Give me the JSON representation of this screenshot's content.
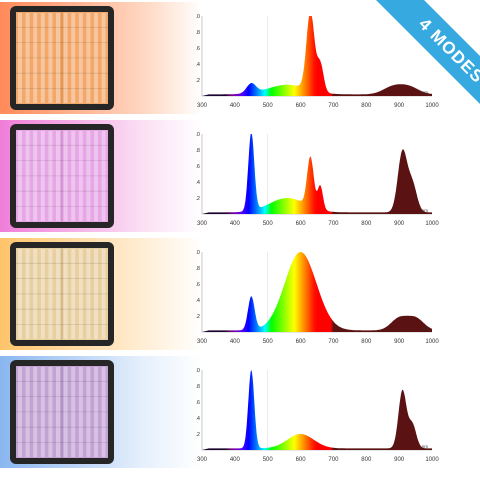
{
  "badge": {
    "text": "4 MODES",
    "color": "#36a9e1"
  },
  "modes": [
    {
      "panel_color": "#f3a86a",
      "row_gradient": [
        "#ff8a5a",
        "#ffd7c2"
      ],
      "chart_data": {
        "type": "area",
        "x_ticks": [
          300,
          400,
          500,
          600,
          700,
          800,
          900,
          1000
        ],
        "y_ticks": [
          0.2,
          0.4,
          0.6,
          0.8,
          1.0
        ],
        "x_unit": "nm",
        "xlim": [
          300,
          1000
        ],
        "ylim": [
          0,
          1.0
        ],
        "peaks": [
          {
            "center": 450,
            "height": 0.12,
            "width": 14
          },
          {
            "center": 560,
            "height": 0.12,
            "width": 60
          },
          {
            "center": 630,
            "height": 0.98,
            "width": 12
          },
          {
            "center": 660,
            "height": 0.35,
            "width": 10
          },
          {
            "center": 880,
            "height": 0.09,
            "width": 30
          },
          {
            "center": 930,
            "height": 0.09,
            "width": 30
          }
        ]
      }
    },
    {
      "panel_color": "#e7a6e6",
      "row_gradient": [
        "#f07ed9",
        "#fbe0f4"
      ],
      "chart_data": {
        "type": "area",
        "x_ticks": [
          300,
          400,
          500,
          600,
          700,
          800,
          900,
          1000
        ],
        "y_ticks": [
          0.2,
          0.4,
          0.6,
          0.8,
          1.0
        ],
        "x_unit": "nm",
        "xlim": [
          300,
          1000
        ],
        "ylim": [
          0,
          1.0
        ],
        "peaks": [
          {
            "center": 450,
            "height": 0.98,
            "width": 9
          },
          {
            "center": 560,
            "height": 0.18,
            "width": 55
          },
          {
            "center": 630,
            "height": 0.62,
            "width": 10
          },
          {
            "center": 660,
            "height": 0.3,
            "width": 8
          },
          {
            "center": 910,
            "height": 0.75,
            "width": 14
          },
          {
            "center": 940,
            "height": 0.35,
            "width": 14
          }
        ]
      }
    },
    {
      "panel_color": "#e8cfa0",
      "row_gradient": [
        "#ffc46a",
        "#ffeed6"
      ],
      "chart_data": {
        "type": "area",
        "x_ticks": [
          300,
          400,
          500,
          600,
          700,
          800,
          900,
          1000
        ],
        "y_ticks": [
          0.2,
          0.4,
          0.6,
          0.8,
          1.0
        ],
        "x_unit": "nm",
        "xlim": [
          300,
          1000
        ],
        "ylim": [
          0,
          1.0
        ],
        "peaks": [
          {
            "center": 450,
            "height": 0.42,
            "width": 10
          },
          {
            "center": 600,
            "height": 0.98,
            "width": 48
          },
          {
            "center": 900,
            "height": 0.15,
            "width": 25
          },
          {
            "center": 950,
            "height": 0.15,
            "width": 25
          }
        ]
      }
    },
    {
      "panel_color": "#c3a2d4",
      "row_gradient": [
        "#8ab6f0",
        "#e6f0fc"
      ],
      "chart_data": {
        "type": "area",
        "x_ticks": [
          300,
          400,
          500,
          600,
          700,
          800,
          900,
          1000
        ],
        "y_ticks": [
          0.2,
          0.4,
          0.6,
          0.8,
          1.0
        ],
        "x_unit": "nm",
        "xlim": [
          300,
          1000
        ],
        "ylim": [
          0,
          1.0
        ],
        "peaks": [
          {
            "center": 450,
            "height": 0.98,
            "width": 9
          },
          {
            "center": 600,
            "height": 0.18,
            "width": 40
          },
          {
            "center": 910,
            "height": 0.72,
            "width": 12
          },
          {
            "center": 940,
            "height": 0.3,
            "width": 12
          }
        ]
      }
    }
  ]
}
